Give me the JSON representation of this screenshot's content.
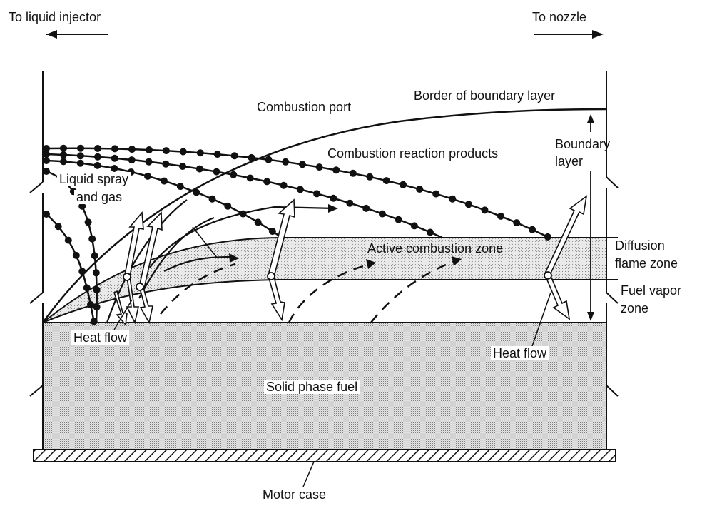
{
  "labels": {
    "to_liquid_injector": "To liquid injector",
    "to_nozzle": "To nozzle",
    "combustion_port": "Combustion port",
    "border_of_boundary_layer": "Border of boundary layer",
    "combustion_reaction_products": "Combustion reaction products",
    "boundary_layer_line1": "Boundary",
    "boundary_layer_line2": "layer",
    "liquid_spray_line1": "Liquid spray",
    "liquid_spray_line2": "and gas",
    "active_combustion_zone": "Active combustion zone",
    "diffusion_flame_zone_line1": "Diffusion",
    "diffusion_flame_zone_line2": "flame zone",
    "fuel_vapor_zone_line1": "Fuel vapor",
    "fuel_vapor_zone_line2": "zone",
    "heat_flow_left": "Heat flow",
    "heat_flow_right": "Heat flow",
    "solid_phase_fuel": "Solid phase fuel",
    "motor_case": "Motor case"
  }
}
